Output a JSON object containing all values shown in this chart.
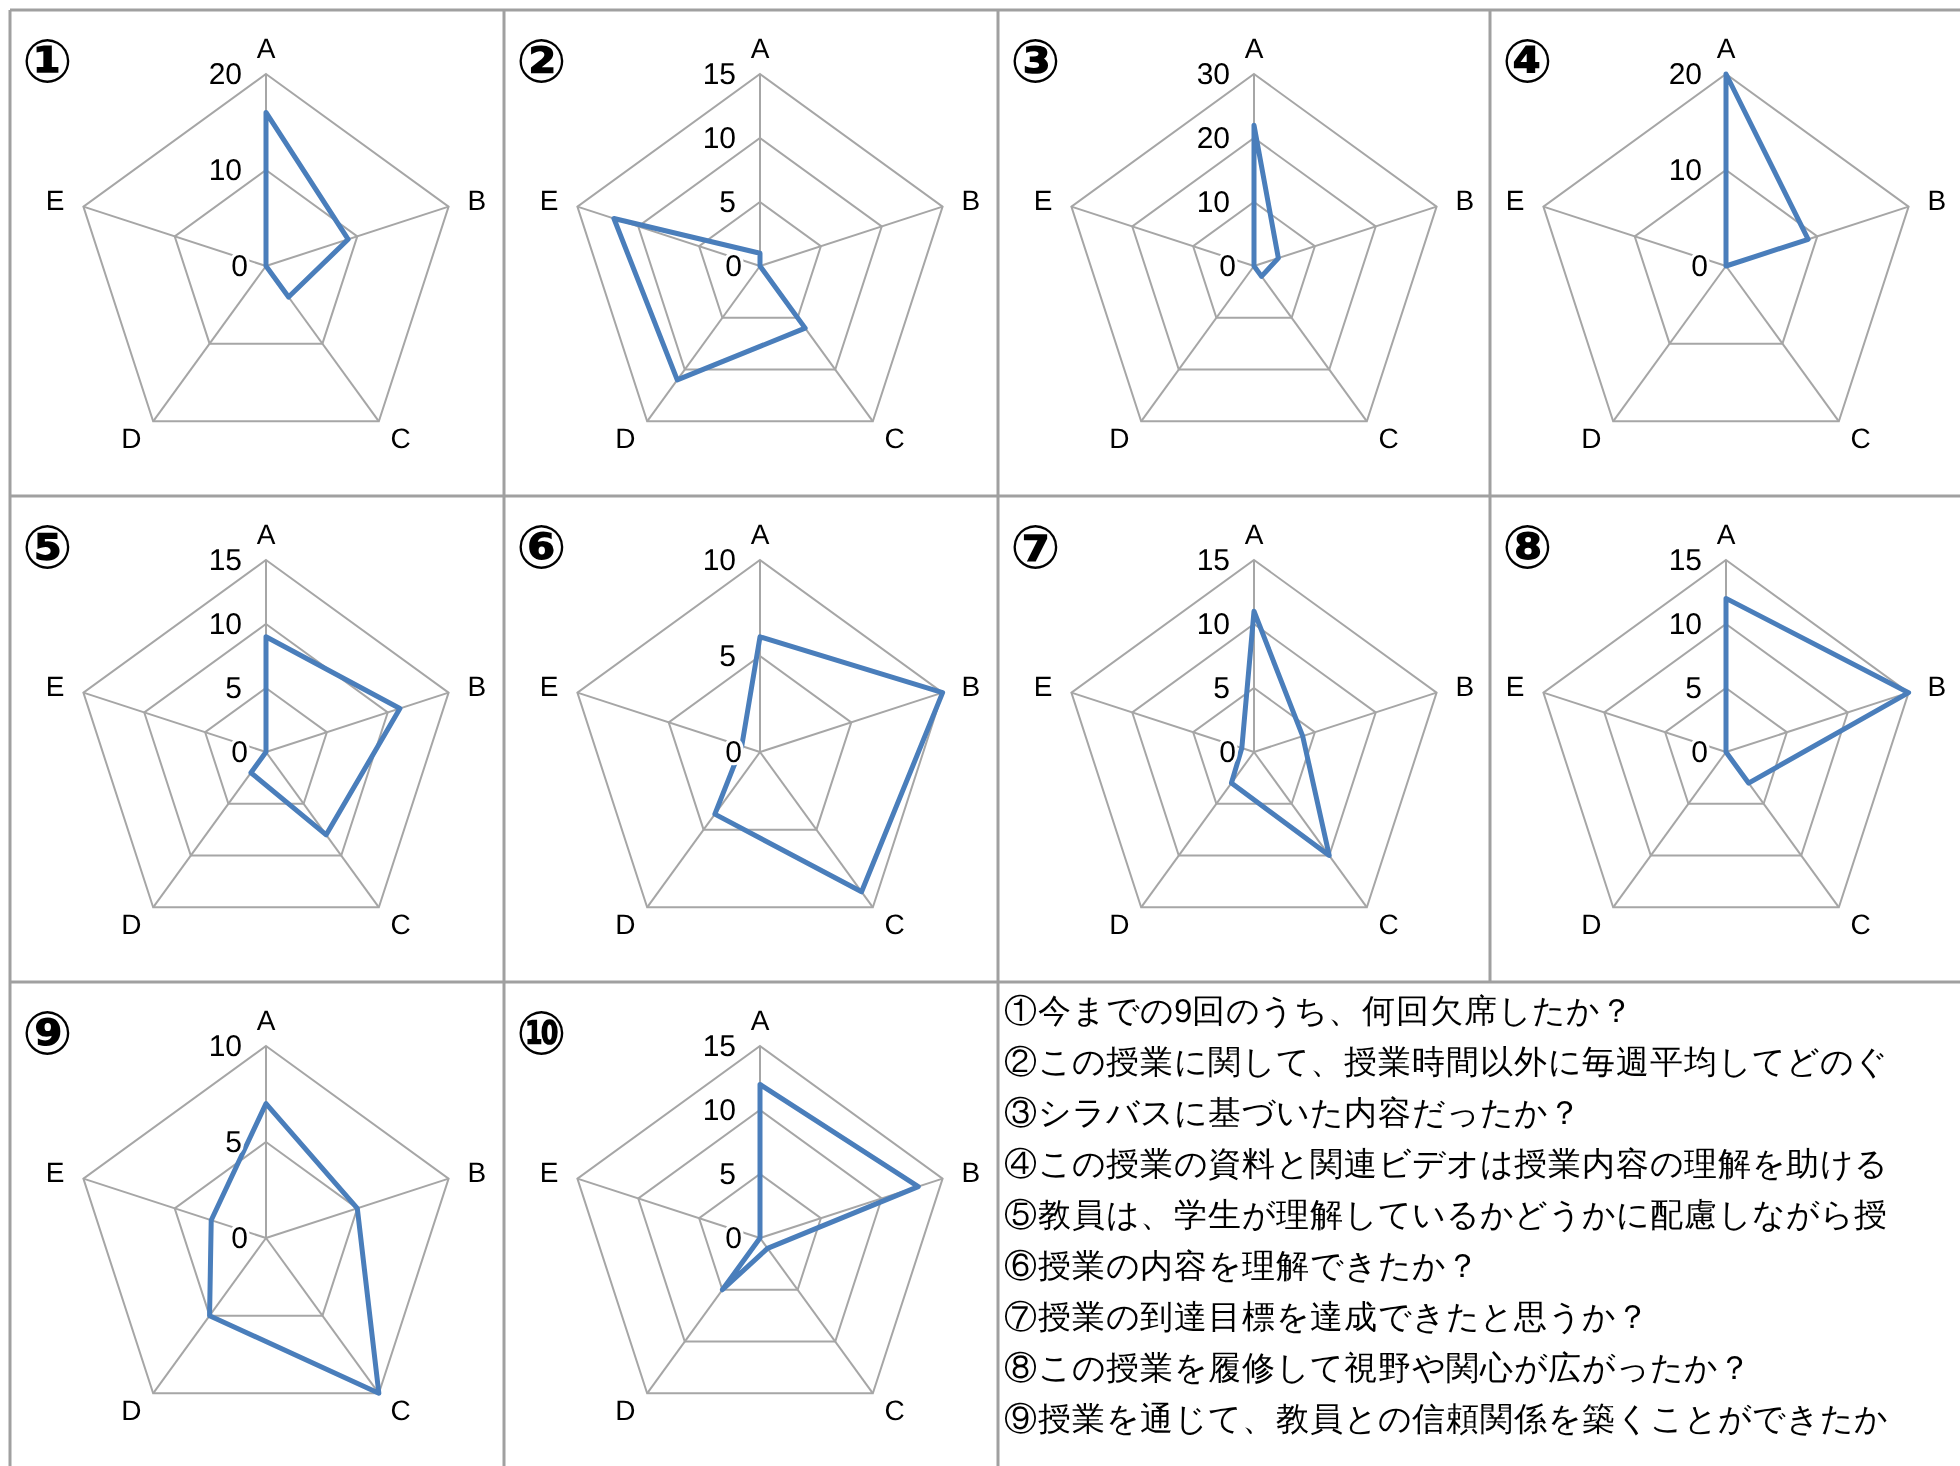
{
  "chart_data": [
    {
      "type": "radar",
      "title": "①",
      "categories": [
        "A",
        "B",
        "C",
        "D",
        "E"
      ],
      "series": [
        {
          "color": "#4a7ebb",
          "values": [
            16,
            9,
            4,
            0,
            0
          ]
        }
      ],
      "ylim": [
        0,
        20
      ],
      "yticks": [
        0,
        10,
        20
      ],
      "grid": true
    },
    {
      "type": "radar",
      "title": "②",
      "categories": [
        "A",
        "B",
        "C",
        "D",
        "E"
      ],
      "series": [
        {
          "color": "#4a7ebb",
          "values": [
            1,
            0,
            6,
            11,
            12
          ]
        }
      ],
      "ylim": [
        0,
        15
      ],
      "yticks": [
        0,
        5,
        10,
        15
      ],
      "grid": true
    },
    {
      "type": "radar",
      "title": "③",
      "categories": [
        "A",
        "B",
        "C",
        "D",
        "E"
      ],
      "series": [
        {
          "color": "#4a7ebb",
          "values": [
            22,
            4,
            2,
            0,
            0
          ]
        }
      ],
      "ylim": [
        0,
        30
      ],
      "yticks": [
        0,
        10,
        20,
        30
      ],
      "grid": true
    },
    {
      "type": "radar",
      "title": "④",
      "categories": [
        "A",
        "B",
        "C",
        "D",
        "E"
      ],
      "series": [
        {
          "color": "#4a7ebb",
          "values": [
            20,
            9,
            0,
            0,
            0
          ]
        }
      ],
      "ylim": [
        0,
        20
      ],
      "yticks": [
        0,
        10,
        20
      ],
      "grid": true
    },
    {
      "type": "radar",
      "title": "⑤",
      "categories": [
        "A",
        "B",
        "C",
        "D",
        "E"
      ],
      "series": [
        {
          "color": "#4a7ebb",
          "values": [
            9,
            11,
            8,
            2,
            0
          ]
        }
      ],
      "ylim": [
        0,
        15
      ],
      "yticks": [
        0,
        5,
        10,
        15
      ],
      "grid": true
    },
    {
      "type": "radar",
      "title": "⑥",
      "categories": [
        "A",
        "B",
        "C",
        "D",
        "E"
      ],
      "series": [
        {
          "color": "#4a7ebb",
          "values": [
            6,
            10,
            9,
            4,
            1
          ]
        }
      ],
      "ylim": [
        0,
        10
      ],
      "yticks": [
        0,
        5,
        10
      ],
      "grid": true
    },
    {
      "type": "radar",
      "title": "⑦",
      "categories": [
        "A",
        "B",
        "C",
        "D",
        "E"
      ],
      "series": [
        {
          "color": "#4a7ebb",
          "values": [
            11,
            4,
            10,
            3,
            1
          ]
        }
      ],
      "ylim": [
        0,
        15
      ],
      "yticks": [
        0,
        5,
        10,
        15
      ],
      "grid": true
    },
    {
      "type": "radar",
      "title": "⑧",
      "categories": [
        "A",
        "B",
        "C",
        "D",
        "E"
      ],
      "series": [
        {
          "color": "#4a7ebb",
          "values": [
            12,
            15,
            3,
            0,
            0
          ]
        }
      ],
      "ylim": [
        0,
        15
      ],
      "yticks": [
        0,
        5,
        10,
        15
      ],
      "grid": true
    },
    {
      "type": "radar",
      "title": "⑨",
      "categories": [
        "A",
        "B",
        "C",
        "D",
        "E"
      ],
      "series": [
        {
          "color": "#4a7ebb",
          "values": [
            7,
            5,
            10,
            5,
            3
          ]
        }
      ],
      "ylim": [
        0,
        10
      ],
      "yticks": [
        0,
        5,
        10
      ],
      "grid": true
    },
    {
      "type": "radar",
      "title": "⑩",
      "categories": [
        "A",
        "B",
        "C",
        "D",
        "E"
      ],
      "series": [
        {
          "color": "#4a7ebb",
          "values": [
            12,
            13,
            1,
            5,
            0
          ]
        }
      ],
      "ylim": [
        0,
        15
      ],
      "yticks": [
        0,
        5,
        10,
        15
      ],
      "grid": true
    },
    {
      "type": "other",
      "annotations": [
        "①今までの9回のうち、何回欠席したか？",
        "②この授業に関して、授業時間以外に毎週平均してどのぐ",
        "③シラバスに基づいた内容だったか？",
        "④この授業の資料と関連ビデオは授業内容の理解を助ける",
        "⑤教員は、学生が理解しているかどうかに配慮しながら授",
        "⑥授業の内容を理解できたか？",
        "⑦授業の到達目標を達成できたと思うか？",
        "⑧この授業を履修して視野や関心が広がったか？",
        "⑨授業を通じて、教員との信頼関係を築くことができたか"
      ]
    }
  ]
}
